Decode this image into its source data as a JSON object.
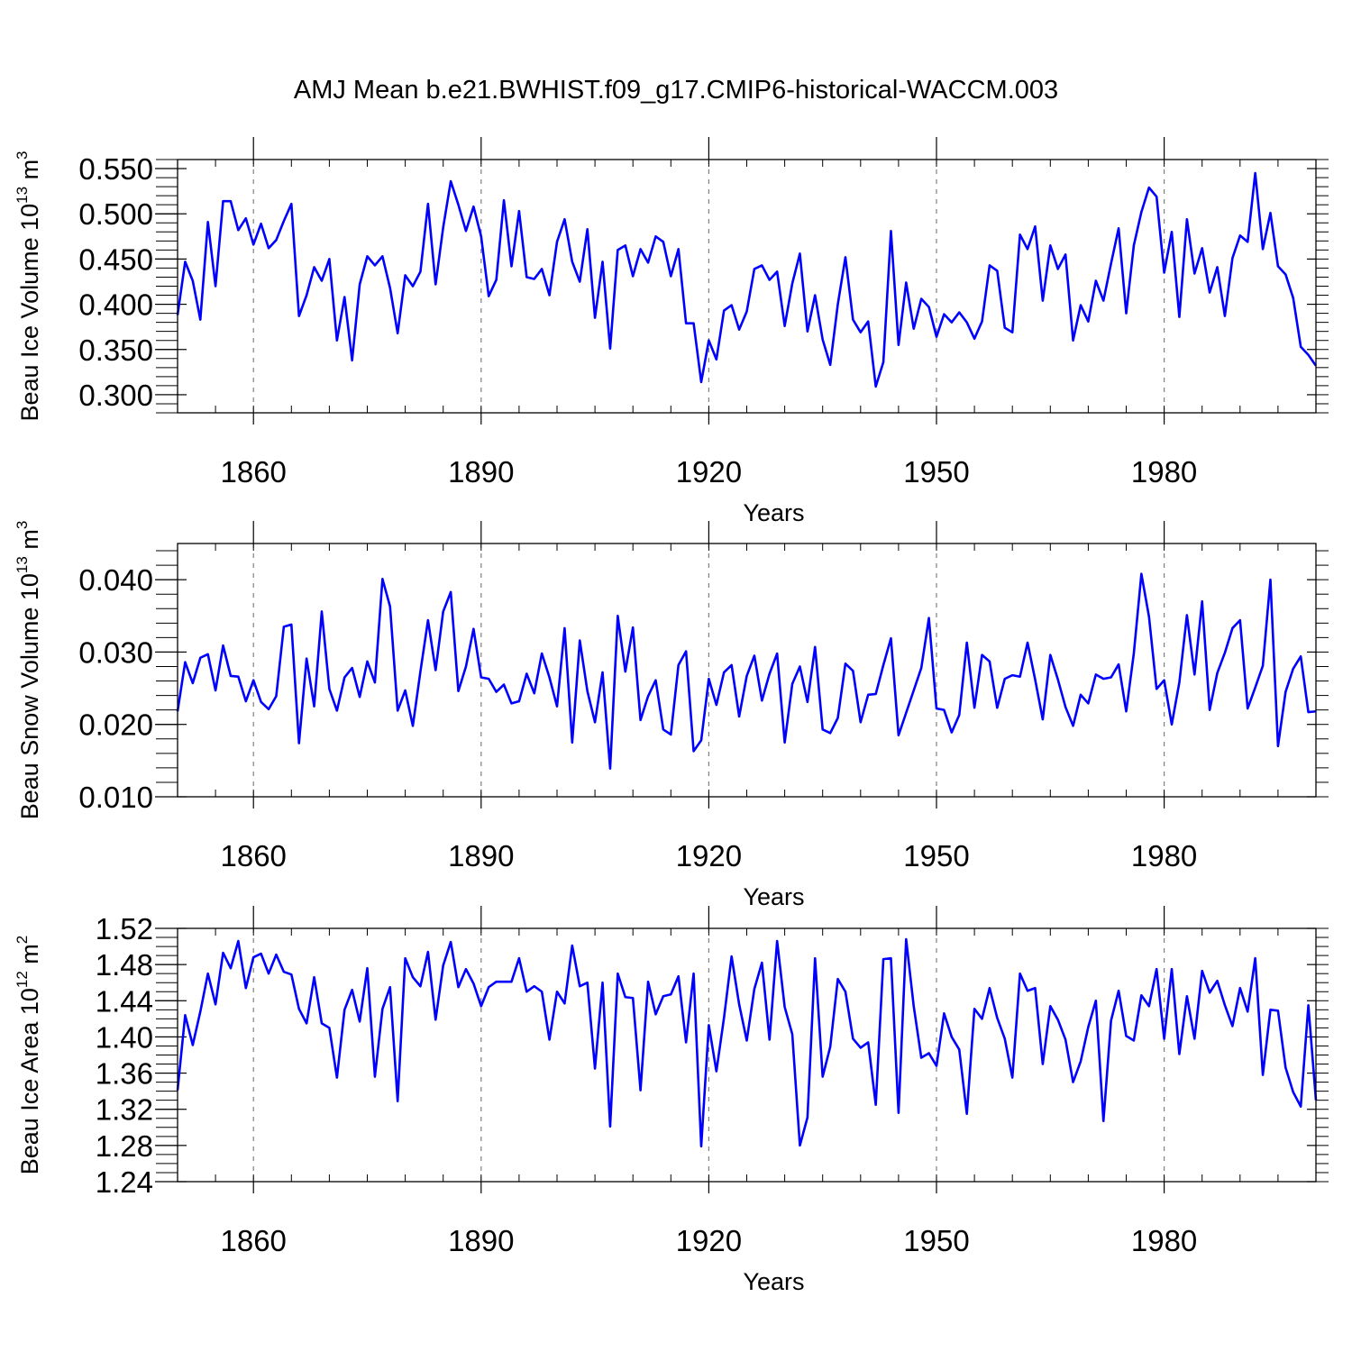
{
  "title": "AMJ Mean b.e21.BWHIST.f09_g17.CMIP6-historical-WACCM.003",
  "colors": {
    "line": "#0000ff",
    "axis": "#000000",
    "grid": "#808080"
  },
  "chart_data": [
    {
      "type": "line",
      "id": "ice-volume",
      "ylabel_main": "Beau Ice Volume 10",
      "ylabel_exp": "13",
      "ylabel_unit": " m",
      "ylabel_unit_exp": "3",
      "xlabel": "Years",
      "xlim": [
        1850,
        2000
      ],
      "ylim": [
        0.28,
        0.56
      ],
      "yticks": [
        0.3,
        0.35,
        0.4,
        0.45,
        0.5,
        0.55
      ],
      "ytick_labels": [
        "0.300",
        "0.350",
        "0.400",
        "0.450",
        "0.500",
        "0.550"
      ],
      "yminor_step": 0.01,
      "xticks": [
        1860,
        1890,
        1920,
        1950,
        1980
      ],
      "xtick_labels": [
        "1860",
        "1890",
        "1920",
        "1950",
        "1980"
      ],
      "grid": "vertical-dashed",
      "x_start": 1850,
      "values": [
        0.388,
        0.447,
        0.426,
        0.383,
        0.491,
        0.42,
        0.514,
        0.514,
        0.482,
        0.495,
        0.466,
        0.489,
        0.462,
        0.471,
        0.492,
        0.511,
        0.387,
        0.41,
        0.441,
        0.426,
        0.45,
        0.36,
        0.408,
        0.338,
        0.422,
        0.453,
        0.443,
        0.453,
        0.418,
        0.368,
        0.432,
        0.42,
        0.436,
        0.511,
        0.422,
        0.485,
        0.536,
        0.51,
        0.481,
        0.508,
        0.475,
        0.409,
        0.427,
        0.515,
        0.442,
        0.503,
        0.43,
        0.428,
        0.439,
        0.41,
        0.469,
        0.494,
        0.447,
        0.425,
        0.483,
        0.385,
        0.447,
        0.351,
        0.46,
        0.465,
        0.431,
        0.461,
        0.446,
        0.475,
        0.469,
        0.431,
        0.461,
        0.379,
        0.379,
        0.314,
        0.36,
        0.339,
        0.393,
        0.399,
        0.372,
        0.392,
        0.439,
        0.443,
        0.427,
        0.436,
        0.376,
        0.423,
        0.456,
        0.37,
        0.41,
        0.361,
        0.333,
        0.4,
        0.452,
        0.383,
        0.369,
        0.381,
        0.309,
        0.336,
        0.481,
        0.355,
        0.424,
        0.373,
        0.406,
        0.397,
        0.364,
        0.389,
        0.38,
        0.391,
        0.38,
        0.362,
        0.381,
        0.443,
        0.437,
        0.374,
        0.369,
        0.477,
        0.461,
        0.486,
        0.404,
        0.465,
        0.439,
        0.455,
        0.36,
        0.399,
        0.381,
        0.426,
        0.404,
        0.445,
        0.484,
        0.39,
        0.465,
        0.502,
        0.529,
        0.519,
        0.435,
        0.48,
        0.386,
        0.494,
        0.434,
        0.462,
        0.413,
        0.441,
        0.387,
        0.451,
        0.476,
        0.469,
        0.545,
        0.461,
        0.501,
        0.442,
        0.433,
        0.407,
        0.353,
        0.344,
        0.332
      ]
    },
    {
      "type": "line",
      "id": "snow-volume",
      "ylabel_main": "Beau Snow Volume 10",
      "ylabel_exp": "13",
      "ylabel_unit": " m",
      "ylabel_unit_exp": "3",
      "xlabel": "Years",
      "xlim": [
        1850,
        2000
      ],
      "ylim": [
        0.01,
        0.045
      ],
      "yticks": [
        0.01,
        0.02,
        0.03,
        0.04
      ],
      "ytick_labels": [
        "0.010",
        "0.020",
        "0.030",
        "0.040"
      ],
      "yminor_step": 0.002,
      "xticks": [
        1860,
        1890,
        1920,
        1950,
        1980
      ],
      "xtick_labels": [
        "1860",
        "1890",
        "1920",
        "1950",
        "1980"
      ],
      "grid": "vertical-dashed",
      "x_start": 1850,
      "values": [
        0.0218,
        0.0286,
        0.0257,
        0.0292,
        0.0297,
        0.0247,
        0.0309,
        0.0267,
        0.0266,
        0.0232,
        0.0261,
        0.0231,
        0.0221,
        0.0239,
        0.0335,
        0.0338,
        0.0174,
        0.0291,
        0.0225,
        0.0356,
        0.0249,
        0.0219,
        0.0265,
        0.0278,
        0.0238,
        0.0287,
        0.0258,
        0.0401,
        0.0363,
        0.0219,
        0.0247,
        0.0198,
        0.0273,
        0.0344,
        0.0275,
        0.0356,
        0.0383,
        0.0246,
        0.028,
        0.0332,
        0.0265,
        0.0263,
        0.0245,
        0.0255,
        0.0229,
        0.0232,
        0.027,
        0.0243,
        0.0298,
        0.0265,
        0.0225,
        0.0333,
        0.0175,
        0.0316,
        0.0246,
        0.0203,
        0.0272,
        0.0139,
        0.035,
        0.0273,
        0.0334,
        0.0206,
        0.0239,
        0.0261,
        0.0193,
        0.0186,
        0.0282,
        0.0301,
        0.0163,
        0.0178,
        0.0263,
        0.0227,
        0.0272,
        0.0282,
        0.0211,
        0.0267,
        0.0295,
        0.0233,
        0.027,
        0.0298,
        0.0175,
        0.0256,
        0.028,
        0.0231,
        0.0307,
        0.0193,
        0.0188,
        0.0209,
        0.0284,
        0.0274,
        0.0203,
        0.0241,
        0.0242,
        0.0282,
        0.0319,
        0.0185,
        0.0216,
        0.0247,
        0.0278,
        0.0347,
        0.0222,
        0.022,
        0.0189,
        0.0213,
        0.0313,
        0.0223,
        0.0296,
        0.0287,
        0.0223,
        0.0263,
        0.0268,
        0.0266,
        0.0313,
        0.0262,
        0.0207,
        0.0296,
        0.0262,
        0.0224,
        0.0198,
        0.0241,
        0.0229,
        0.0269,
        0.0263,
        0.0265,
        0.0283,
        0.0218,
        0.0298,
        0.0408,
        0.0349,
        0.0249,
        0.0261,
        0.02,
        0.0258,
        0.0351,
        0.0269,
        0.037,
        0.022,
        0.0271,
        0.0299,
        0.0333,
        0.0344,
        0.0222,
        0.0251,
        0.0281,
        0.04,
        0.017,
        0.0245,
        0.0277,
        0.0294,
        0.0217,
        0.0218
      ]
    },
    {
      "type": "line",
      "id": "ice-area",
      "ylabel_main": "Beau Ice Area 10",
      "ylabel_exp": "12",
      "ylabel_unit": " m",
      "ylabel_unit_exp": "2",
      "xlabel": "Years",
      "xlim": [
        1850,
        2000
      ],
      "ylim": [
        1.24,
        1.52
      ],
      "yticks": [
        1.24,
        1.28,
        1.32,
        1.36,
        1.4,
        1.44,
        1.48,
        1.52
      ],
      "ytick_labels": [
        "1.24",
        "1.28",
        "1.32",
        "1.36",
        "1.40",
        "1.44",
        "1.48",
        "1.52"
      ],
      "yminor_step": 0.01,
      "xticks": [
        1860,
        1890,
        1920,
        1950,
        1980
      ],
      "xtick_labels": [
        "1860",
        "1890",
        "1920",
        "1950",
        "1980"
      ],
      "grid": "vertical-dashed",
      "x_start": 1850,
      "values": [
        1.341,
        1.424,
        1.391,
        1.428,
        1.47,
        1.436,
        1.493,
        1.476,
        1.506,
        1.454,
        1.488,
        1.492,
        1.47,
        1.491,
        1.472,
        1.469,
        1.431,
        1.415,
        1.466,
        1.415,
        1.41,
        1.355,
        1.43,
        1.452,
        1.417,
        1.476,
        1.356,
        1.431,
        1.455,
        1.329,
        1.487,
        1.466,
        1.456,
        1.494,
        1.419,
        1.479,
        1.505,
        1.455,
        1.475,
        1.459,
        1.434,
        1.455,
        1.461,
        1.461,
        1.461,
        1.487,
        1.45,
        1.456,
        1.45,
        1.397,
        1.45,
        1.437,
        1.501,
        1.456,
        1.46,
        1.365,
        1.46,
        1.301,
        1.47,
        1.444,
        1.443,
        1.341,
        1.461,
        1.425,
        1.445,
        1.447,
        1.467,
        1.394,
        1.47,
        1.279,
        1.413,
        1.362,
        1.421,
        1.489,
        1.436,
        1.396,
        1.453,
        1.482,
        1.397,
        1.506,
        1.433,
        1.403,
        1.28,
        1.311,
        1.487,
        1.356,
        1.389,
        1.464,
        1.45,
        1.398,
        1.388,
        1.394,
        1.325,
        1.486,
        1.487,
        1.316,
        1.508,
        1.434,
        1.377,
        1.382,
        1.368,
        1.426,
        1.4,
        1.386,
        1.315,
        1.431,
        1.42,
        1.454,
        1.421,
        1.398,
        1.355,
        1.47,
        1.451,
        1.454,
        1.37,
        1.434,
        1.419,
        1.397,
        1.35,
        1.373,
        1.411,
        1.44,
        1.307,
        1.418,
        1.451,
        1.401,
        1.396,
        1.446,
        1.434,
        1.475,
        1.398,
        1.475,
        1.381,
        1.445,
        1.398,
        1.473,
        1.449,
        1.462,
        1.435,
        1.412,
        1.454,
        1.428,
        1.487,
        1.358,
        1.43,
        1.429,
        1.366,
        1.339,
        1.323,
        1.435,
        1.33
      ]
    }
  ]
}
